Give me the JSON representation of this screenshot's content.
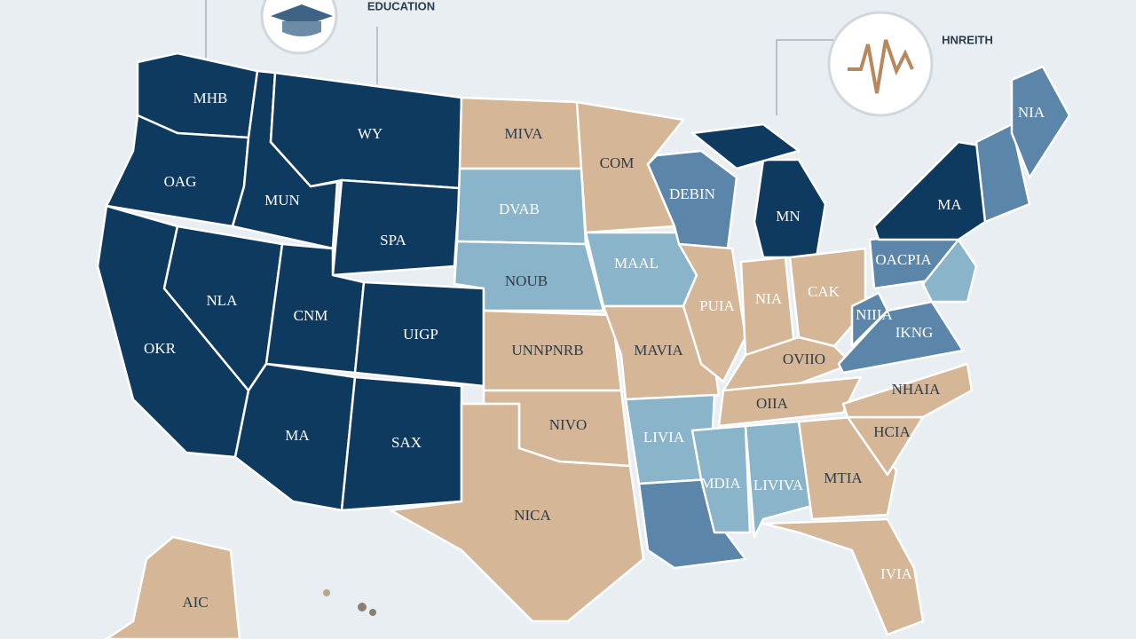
{
  "header": {
    "education": "EDUCATION",
    "health": "HNREITH"
  },
  "states": [
    {
      "label": "MHB"
    },
    {
      "label": "WY"
    },
    {
      "label": "OAG"
    },
    {
      "label": "MUN"
    },
    {
      "label": "SPA"
    },
    {
      "label": "NLA"
    },
    {
      "label": "CNM"
    },
    {
      "label": "UIGP"
    },
    {
      "label": "OKR"
    },
    {
      "label": "MA"
    },
    {
      "label": "SAX"
    },
    {
      "label": "MIVA"
    },
    {
      "label": "COM"
    },
    {
      "label": "DVAB"
    },
    {
      "label": "MAAL"
    },
    {
      "label": "NOUB"
    },
    {
      "label": "UNNPNRB"
    },
    {
      "label": "NIVO"
    },
    {
      "label": "NICA"
    },
    {
      "label": "MAVIA"
    },
    {
      "label": "LIVIA"
    },
    {
      "label": "DEBIN"
    },
    {
      "label": "MN"
    },
    {
      "label": "PUIA"
    },
    {
      "label": "NIA"
    },
    {
      "label": "CAK"
    },
    {
      "label": "OVIIO"
    },
    {
      "label": "OIIA"
    },
    {
      "label": "MDIA"
    },
    {
      "label": "LIVIVA"
    },
    {
      "label": "MTIA"
    },
    {
      "label": "NHAIA"
    },
    {
      "label": "HCIA"
    },
    {
      "label": "IVIA"
    },
    {
      "label": "IKNG"
    },
    {
      "label": "NIIIA"
    },
    {
      "label": "OACPIA"
    },
    {
      "label": "MA"
    },
    {
      "label": "NIA"
    },
    {
      "label": "AIC"
    }
  ]
}
